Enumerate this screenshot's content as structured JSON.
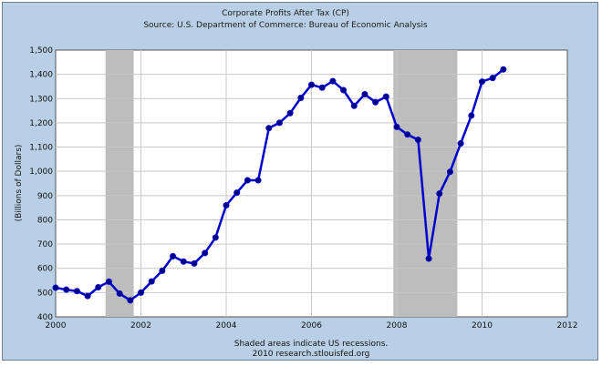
{
  "chart_data": {
    "type": "line",
    "title": "Corporate Profits After Tax (CP)",
    "subtitle": "Source: U.S. Department of Commerce: Bureau of Economic Analysis",
    "ylabel": "(Billions of Dollars)",
    "xlabel": "",
    "xlim": [
      2000,
      2012
    ],
    "ylim": [
      400,
      1500
    ],
    "x_ticks": [
      "2000",
      "2002",
      "2004",
      "2006",
      "2008",
      "2010",
      "2012"
    ],
    "y_ticks": [
      "400",
      "500",
      "600",
      "700",
      "800",
      "900",
      "1,000",
      "1,100",
      "1,200",
      "1,300",
      "1,400",
      "1,500"
    ],
    "grid": true,
    "recessions": [
      {
        "start": 2001.17,
        "end": 2001.83
      },
      {
        "start": 2007.92,
        "end": 2009.42
      }
    ],
    "series": [
      {
        "color": "#0000cc",
        "x": [
          2000.0,
          2000.25,
          2000.5,
          2000.75,
          2001.0,
          2001.25,
          2001.5,
          2001.75,
          2002.0,
          2002.25,
          2002.5,
          2002.75,
          2003.0,
          2003.25,
          2003.5,
          2003.75,
          2004.0,
          2004.25,
          2004.5,
          2004.75,
          2005.0,
          2005.25,
          2005.5,
          2005.75,
          2006.0,
          2006.25,
          2006.5,
          2006.75,
          2007.0,
          2007.25,
          2007.5,
          2007.75,
          2008.0,
          2008.25,
          2008.5,
          2008.75,
          2009.0,
          2009.25,
          2009.5,
          2009.75,
          2010.0,
          2010.25,
          2010.5
        ],
        "values": [
          520,
          512,
          506,
          486,
          522,
          545,
          496,
          468,
          500,
          546,
          590,
          650,
          628,
          620,
          663,
          727,
          860,
          912,
          963,
          963,
          1178,
          1200,
          1240,
          1303,
          1357,
          1345,
          1372,
          1335,
          1270,
          1318,
          1285,
          1308,
          1183,
          1152,
          1130,
          640,
          908,
          998,
          1115,
          1230,
          1370,
          1385,
          1420
        ]
      }
    ],
    "footer_line1": "Shaded areas indicate US recessions.",
    "footer_line2": "2010 research.stlouisfed.org"
  }
}
